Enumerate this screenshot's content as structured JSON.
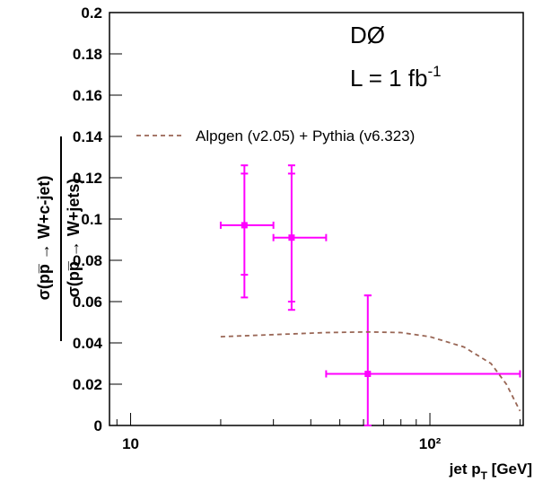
{
  "chart_data": {
    "type": "scatter",
    "annotations": [
      "DØ",
      "L = 1 fb",
      "-1"
    ],
    "x_label": [
      "jet p",
      "T",
      " [GeV]"
    ],
    "y_label": [
      "σ(pp̅ → W+c-jet)",
      "σ(pp̅ → W+jets)"
    ],
    "log_x": true,
    "xlim": [
      8.5,
      205
    ],
    "xticks": [
      10,
      {
        "value": 100,
        "label": "10²"
      }
    ],
    "xminor": [
      9,
      20,
      30,
      40,
      50,
      60,
      70,
      80,
      90,
      200
    ],
    "ylim": [
      0,
      0.2
    ],
    "yticks": [
      0,
      0.02,
      0.04,
      0.06,
      0.08,
      0.1,
      0.12,
      0.14,
      0.16,
      0.18,
      0.2
    ],
    "series": [
      {
        "color": "#ff00ff",
        "x": [
          24,
          34.5,
          62
        ],
        "x_low": [
          20,
          30,
          45
        ],
        "x_high": [
          30,
          45,
          200
        ],
        "values": [
          0.097,
          0.091,
          0.025
        ],
        "y_low": [
          0.062,
          0.056,
          0
        ],
        "y_high": [
          0.126,
          0.126,
          0.063
        ],
        "y_stat_low": [
          0.073,
          0.06,
          0
        ],
        "y_stat_high": [
          0.122,
          0.122,
          0.063
        ]
      },
      {
        "name": "Alpgen (v2.05) + Pythia (v6.323)",
        "color": "#996655",
        "dashed": true,
        "x": [
          20,
          30,
          45,
          62,
          80,
          100,
          130,
          160,
          180,
          200
        ],
        "values": [
          0.043,
          0.044,
          0.045,
          0.0453,
          0.045,
          0.043,
          0.038,
          0.03,
          0.02,
          0.007
        ]
      }
    ]
  }
}
